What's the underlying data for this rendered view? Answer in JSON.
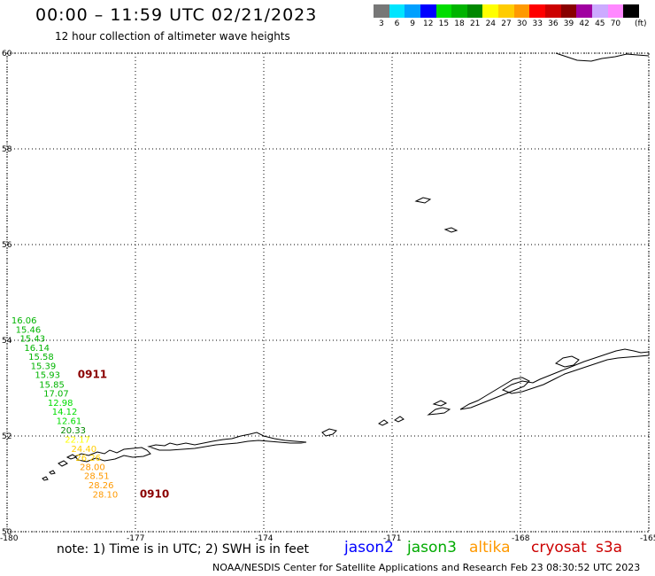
{
  "header": {
    "title": "00:00 – 11:59 UTC 02/21/2023",
    "subtitle": "12 hour collection of altimeter wave heights"
  },
  "legend": {
    "unit": "(ft)",
    "items": [
      {
        "label": "3",
        "color": "#777777"
      },
      {
        "label": "6",
        "color": "#00e5ff"
      },
      {
        "label": "9",
        "color": "#00a0ff"
      },
      {
        "label": "12",
        "color": "#0000ff"
      },
      {
        "label": "15",
        "color": "#00dd00"
      },
      {
        "label": "18",
        "color": "#00b400"
      },
      {
        "label": "21",
        "color": "#008800"
      },
      {
        "label": "24",
        "color": "#ffff00"
      },
      {
        "label": "27",
        "color": "#ffcc00"
      },
      {
        "label": "30",
        "color": "#ff9900"
      },
      {
        "label": "33",
        "color": "#ff0000"
      },
      {
        "label": "36",
        "color": "#cc0000"
      },
      {
        "label": "39",
        "color": "#880000"
      },
      {
        "label": "42",
        "color": "#a000a0"
      },
      {
        "label": "45",
        "color": "#ccaaff"
      },
      {
        "label": "70",
        "color": "#ff88ff"
      },
      {
        "label": "",
        "color": "#000000"
      }
    ]
  },
  "map": {
    "lon_range": [
      -180,
      -165
    ],
    "lat_range": [
      50,
      60
    ],
    "lon_ticks": [
      "-180",
      "-177",
      "-174",
      "-171",
      "-168",
      "-165"
    ],
    "lat_ticks": [
      "60",
      "58",
      "56",
      "54",
      "52",
      "50"
    ]
  },
  "observations": [
    {
      "value": "16.06",
      "lat": 54.35,
      "lon": -179.9,
      "color": "#00b400"
    },
    {
      "value": "15.46",
      "lat": 54.16,
      "lon": -179.8,
      "color": "#00b400"
    },
    {
      "value": "15.43",
      "lat": 53.97,
      "lon": -179.7,
      "color": "#00b400"
    },
    {
      "value": "16.14",
      "lat": 53.78,
      "lon": -179.6,
      "color": "#00b400"
    },
    {
      "value": "15.58",
      "lat": 53.59,
      "lon": -179.5,
      "color": "#00b400"
    },
    {
      "value": "15.39",
      "lat": 53.4,
      "lon": -179.45,
      "color": "#00b400"
    },
    {
      "value": "15.93",
      "lat": 53.21,
      "lon": -179.35,
      "color": "#00b400"
    },
    {
      "value": "15.85",
      "lat": 53.01,
      "lon": -179.25,
      "color": "#00b400"
    },
    {
      "value": "17.07",
      "lat": 52.82,
      "lon": -179.15,
      "color": "#00b400"
    },
    {
      "value": "12.98",
      "lat": 52.63,
      "lon": -179.05,
      "color": "#00dd00"
    },
    {
      "value": "14.12",
      "lat": 52.44,
      "lon": -178.95,
      "color": "#00dd00"
    },
    {
      "value": "12.61",
      "lat": 52.25,
      "lon": -178.85,
      "color": "#00dd00"
    },
    {
      "value": "20.33",
      "lat": 52.06,
      "lon": -178.75,
      "color": "#008800"
    },
    {
      "value": "22.17",
      "lat": 51.86,
      "lon": -178.65,
      "color": "#ffff00"
    },
    {
      "value": "24.40",
      "lat": 51.67,
      "lon": -178.5,
      "color": "#ffcc00"
    },
    {
      "value": "26.26",
      "lat": 51.48,
      "lon": -178.4,
      "color": "#ffcc00"
    },
    {
      "value": "28.00",
      "lat": 51.29,
      "lon": -178.3,
      "color": "#ff9900"
    },
    {
      "value": "28.51",
      "lat": 51.1,
      "lon": -178.2,
      "color": "#ff9900"
    },
    {
      "value": "28.26",
      "lat": 50.91,
      "lon": -178.1,
      "color": "#ff9900"
    },
    {
      "value": "28.10",
      "lat": 50.71,
      "lon": -178.0,
      "color": "#ff9900"
    }
  ],
  "pass_labels": [
    {
      "text": "0911",
      "lat": 53.21,
      "lon": -178.35
    },
    {
      "text": "0910",
      "lat": 50.71,
      "lon": -176.9
    }
  ],
  "notes": {
    "note": "note: 1) Time is in UTC; 2) SWH is in feet"
  },
  "satellites": [
    {
      "name": "jason2",
      "color": "#0000ff"
    },
    {
      "name": "jason3",
      "color": "#00aa00"
    },
    {
      "name": "altika",
      "color": "#ff9900"
    },
    {
      "name": "cryosat",
      "color": "#cc0000"
    },
    {
      "name": "s3a",
      "color": "#cc0000"
    }
  ],
  "footer": {
    "credit": "NOAA/NESDIS Center for Satellite Applications and Research    Feb 23 08:30:52 UTC 2023"
  }
}
